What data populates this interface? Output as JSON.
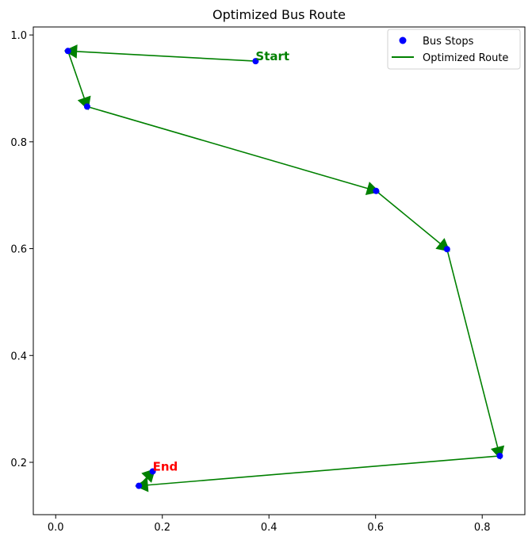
{
  "chart_data": {
    "type": "scatter",
    "title": "Optimized Bus Route",
    "xlabel": "",
    "ylabel": "",
    "xlim": [
      -0.042,
      0.88
    ],
    "ylim": [
      0.102,
      1.015
    ],
    "x_ticks": [
      "0.0",
      "0.2",
      "0.4",
      "0.6",
      "0.8"
    ],
    "x_tick_values": [
      0.0,
      0.2,
      0.4,
      0.6,
      0.8
    ],
    "y_ticks": [
      "0.2",
      "0.4",
      "0.6",
      "0.8",
      "1.0"
    ],
    "y_tick_values": [
      0.2,
      0.4,
      0.6,
      0.8,
      1.0
    ],
    "grid": false,
    "legend": {
      "placement": "upper-right",
      "entries": [
        {
          "label": "Bus Stops",
          "marker": "circle",
          "color": "#0000ff"
        },
        {
          "label": "Optimized Route",
          "marker": "line",
          "color": "#008000"
        }
      ]
    },
    "series": [
      {
        "name": "Bus Stops",
        "kind": "scatter",
        "color": "#0000ff",
        "points": [
          {
            "x": 0.375,
            "y": 0.951
          },
          {
            "x": 0.023,
            "y": 0.97
          },
          {
            "x": 0.059,
            "y": 0.866
          },
          {
            "x": 0.601,
            "y": 0.708
          },
          {
            "x": 0.734,
            "y": 0.599
          },
          {
            "x": 0.833,
            "y": 0.212
          },
          {
            "x": 0.156,
            "y": 0.156
          },
          {
            "x": 0.182,
            "y": 0.183
          }
        ]
      },
      {
        "name": "Optimized Route",
        "kind": "route",
        "color": "#008000",
        "order": [
          0,
          1,
          2,
          3,
          4,
          5,
          6,
          7
        ]
      }
    ],
    "annotations": [
      {
        "text": "Start",
        "point_index": 0,
        "color": "#008000"
      },
      {
        "text": "End",
        "point_index": 7,
        "color": "#ff0000"
      }
    ]
  }
}
